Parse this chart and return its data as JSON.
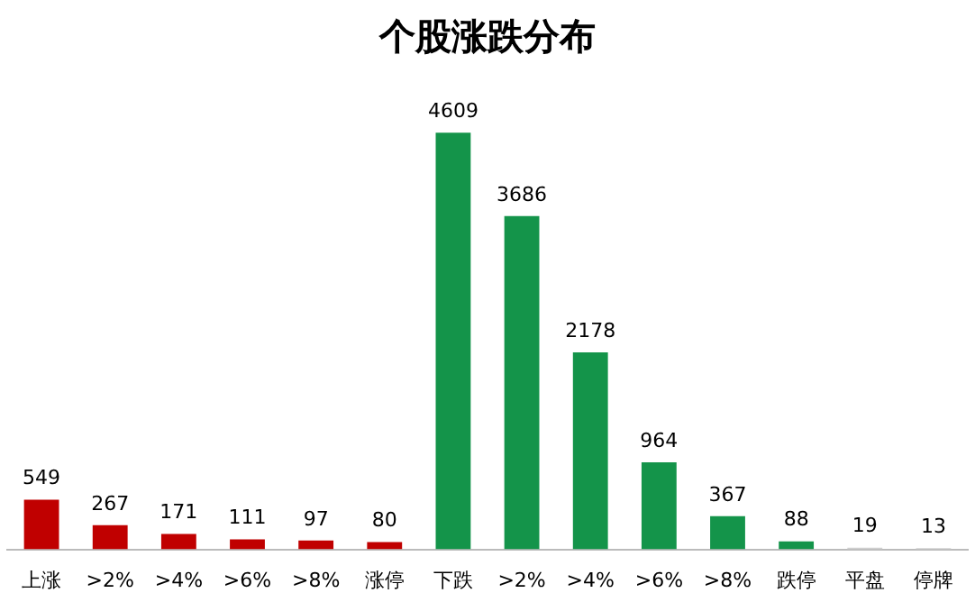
{
  "chart_data": {
    "type": "bar",
    "title": "个股涨跌分布",
    "categories": [
      "上涨",
      ">2%",
      ">4%",
      ">6%",
      ">8%",
      "涨停",
      "下跌",
      ">2%",
      ">4%",
      ">6%",
      ">8%",
      "跌停",
      "平盘",
      "停牌"
    ],
    "values": [
      549,
      267,
      171,
      111,
      97,
      80,
      4609,
      3686,
      2178,
      964,
      367,
      88,
      19,
      13
    ],
    "colors": [
      "#c00000",
      "#c00000",
      "#c00000",
      "#c00000",
      "#c00000",
      "#c00000",
      "#14944a",
      "#14944a",
      "#14944a",
      "#14944a",
      "#14944a",
      "#14944a",
      "#d0d0d0",
      "#d0d0d0"
    ],
    "data_labels": true
  }
}
